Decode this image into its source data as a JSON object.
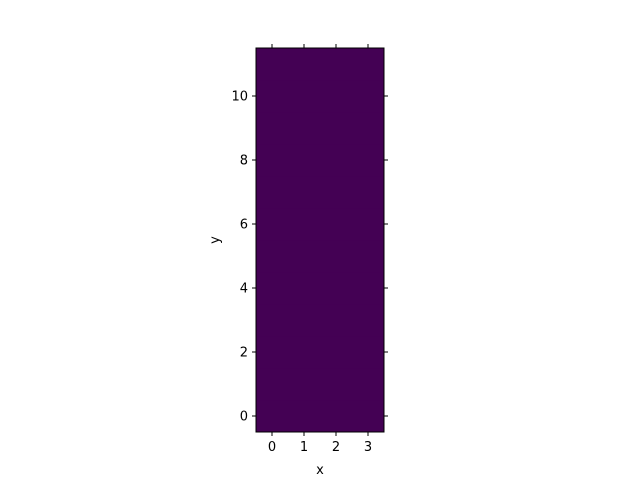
{
  "chart_data": {
    "type": "heatmap",
    "title": "",
    "xlabel": "x",
    "ylabel": "y",
    "xlim": [
      -0.5,
      3.5
    ],
    "ylim": [
      -0.5,
      11.5
    ],
    "x_ticks": [
      0,
      1,
      2,
      3
    ],
    "y_ticks": [
      0,
      2,
      4,
      6,
      8,
      10
    ],
    "grid": false,
    "colormap": "viridis",
    "cell_color": "#440154",
    "rows": 12,
    "cols": 4,
    "values_note": "uniform value across all cells"
  }
}
